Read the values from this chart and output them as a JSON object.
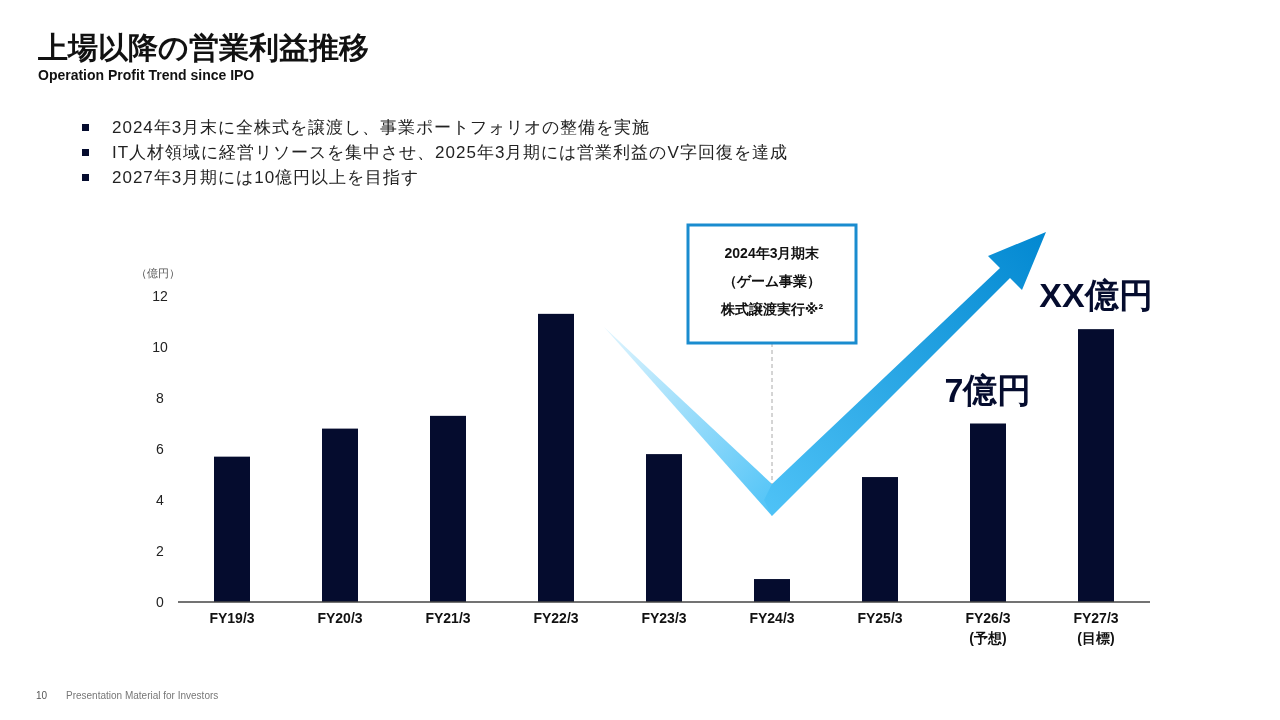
{
  "chart_data": {
    "type": "bar",
    "title": "上場以降の営業利益推移",
    "subtitle": "Operation Profit Trend since IPO",
    "ylabel": "（億円）",
    "categories": [
      "FY19/3",
      "FY20/3",
      "FY21/3",
      "FY22/3",
      "FY23/3",
      "FY24/3",
      "FY25/3",
      "FY26/3\n(予想)",
      "FY27/3\n(目標)"
    ],
    "values": [
      5.7,
      6.8,
      7.3,
      11.3,
      5.8,
      0.9,
      4.9,
      7,
      10.7
    ],
    "value_labels": [
      null,
      null,
      null,
      null,
      null,
      null,
      null,
      "7億円",
      "XX億円"
    ],
    "color": "#050c2e",
    "ylim": [
      0,
      12
    ],
    "yticks": [
      0,
      2,
      4,
      6,
      8,
      10,
      12
    ],
    "grid": false,
    "annotations": [
      "2024年3月末に全株式を譲渡し、事業ポートフォリオの整備を実施",
      "IT人材領域に経営リソースを集中させ、2025年3月期には営業利益のV字回復を達成",
      "2027年3月期には10億円以上を目指す",
      "10",
      "Presentation Material for Investors",
      "2024年3月期末",
      "（ゲーム事業）",
      "株式譲渡実行※²"
    ]
  }
}
